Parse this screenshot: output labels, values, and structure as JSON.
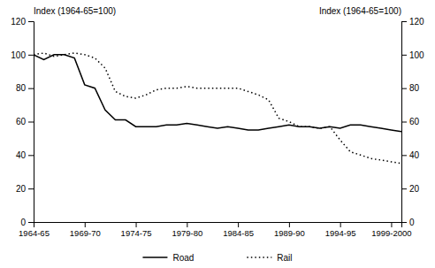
{
  "chart_data": {
    "type": "line",
    "ylabel": "Index (1964-65=100)",
    "y2label": "Index (1964-65=100)",
    "x": [
      0,
      1,
      2,
      3,
      4,
      5,
      6,
      7,
      8,
      9,
      10,
      11,
      12,
      13,
      14,
      15,
      16,
      17,
      18,
      19,
      20,
      21,
      22,
      23,
      24,
      25,
      26,
      27,
      28,
      29,
      30,
      31,
      32,
      33,
      34,
      35,
      36
    ],
    "series": [
      {
        "name": "Road",
        "color": "#000000",
        "line_style": "solid",
        "values": [
          100,
          97,
          100,
          100,
          98,
          82,
          80,
          67,
          61,
          61,
          57,
          57,
          57,
          58,
          58,
          59,
          58,
          57,
          56,
          57,
          56,
          55,
          55,
          56,
          57,
          58,
          57,
          57,
          56,
          57,
          56,
          58,
          58,
          57,
          56,
          55,
          54
        ]
      },
      {
        "name": "Rail",
        "color": "#000000",
        "line_style": "dotted",
        "values": [
          100,
          101,
          99,
          100,
          101,
          100,
          98,
          92,
          78,
          75,
          74,
          76,
          79,
          80,
          80,
          81,
          80,
          80,
          80,
          80,
          80,
          78,
          76,
          73,
          62,
          60,
          57,
          57,
          56,
          57,
          49,
          42,
          40,
          38,
          37,
          36,
          35
        ]
      }
    ],
    "xlim": [
      0,
      36
    ],
    "xticks": [
      {
        "value": 0,
        "label": "1964-65"
      },
      {
        "value": 5,
        "label": "1969-70"
      },
      {
        "value": 10,
        "label": "1974-75"
      },
      {
        "value": 15,
        "label": "1979-80"
      },
      {
        "value": 20,
        "label": "1984-85"
      },
      {
        "value": 25,
        "label": "1989-90"
      },
      {
        "value": 30,
        "label": "1994-95"
      },
      {
        "value": 35,
        "label": "1999-2000"
      }
    ],
    "ylim": [
      0,
      120
    ],
    "yticks": [
      0,
      20,
      40,
      60,
      80,
      100,
      120
    ],
    "y2lim": [
      0,
      120
    ],
    "y2ticks": [
      0,
      20,
      40,
      60,
      80,
      100,
      120
    ],
    "grid": false,
    "legend": "bottom"
  }
}
